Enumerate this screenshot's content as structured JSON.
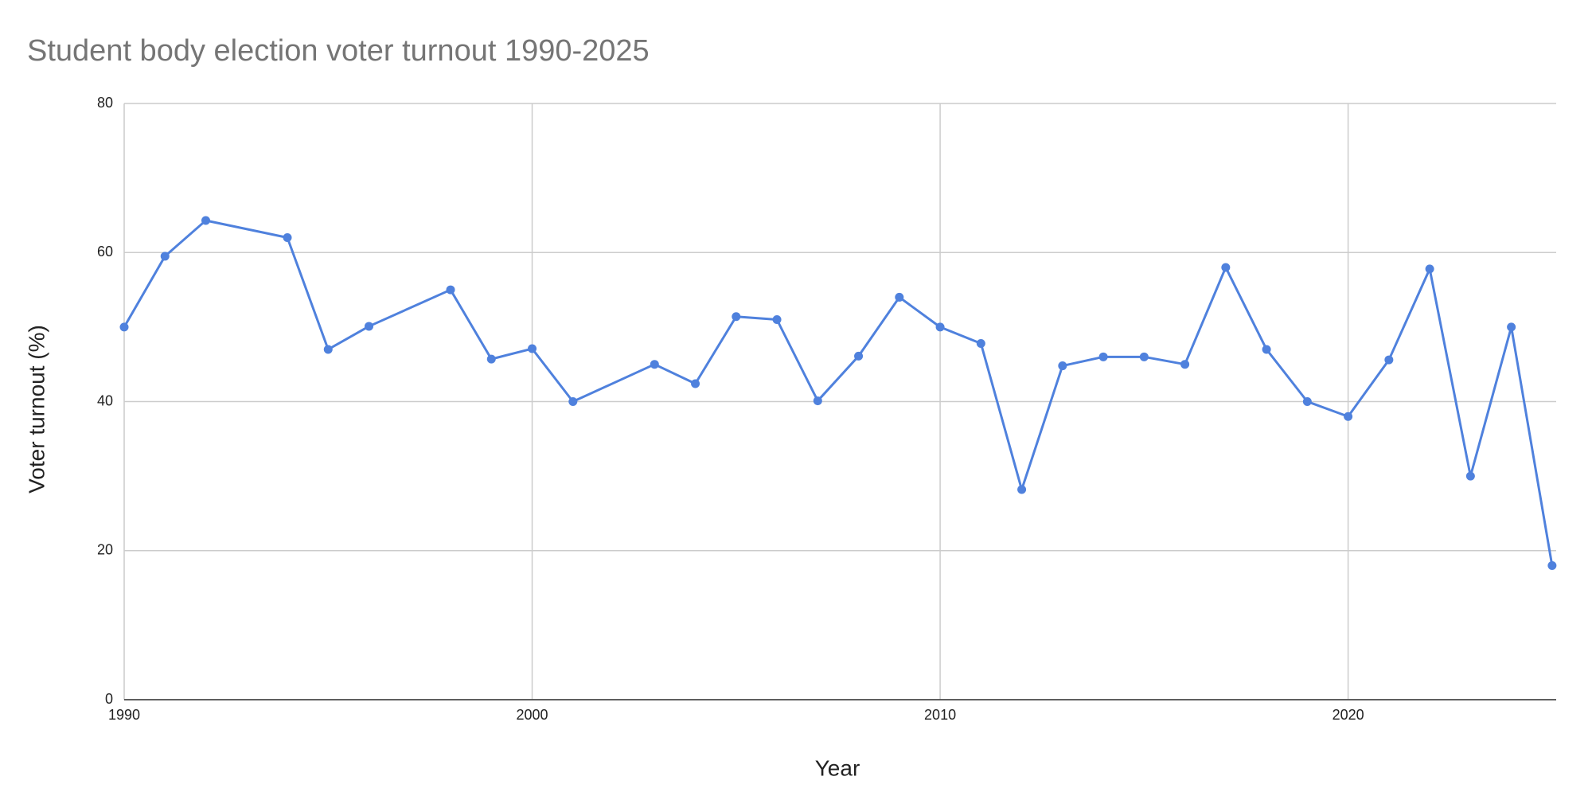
{
  "chart_data": {
    "type": "line",
    "title": "Student body election voter turnout 1990-2025",
    "x_label": "Year",
    "y_label": "Voter turnout (%)",
    "x": [
      1990,
      1991,
      1992,
      1994,
      1995,
      1996,
      1998,
      1999,
      2000,
      2001,
      2003,
      2004,
      2005,
      2006,
      2007,
      2008,
      2009,
      2010,
      2011,
      2012,
      2013,
      2014,
      2015,
      2016,
      2017,
      2018,
      2019,
      2020,
      2021,
      2022,
      2023,
      2024,
      2025
    ],
    "series": [
      {
        "name": "Voter turnout (%)",
        "color": "#4f81dd",
        "values": [
          50,
          59.5,
          64.3,
          62,
          47,
          50.1,
          55,
          45.7,
          47.1,
          40,
          45,
          42.4,
          51.4,
          51,
          40.1,
          46.1,
          54,
          50,
          47.8,
          28.2,
          44.8,
          46,
          46,
          45,
          58,
          47,
          40,
          38,
          45.6,
          57.8,
          30,
          50,
          18
        ]
      }
    ],
    "xlim": [
      1990,
      2025.1
    ],
    "xticks": [
      1990,
      2000,
      2010,
      2020
    ],
    "ylim": [
      0,
      80
    ],
    "yticks": [
      0,
      20,
      40,
      60,
      80
    ],
    "grid": true
  }
}
